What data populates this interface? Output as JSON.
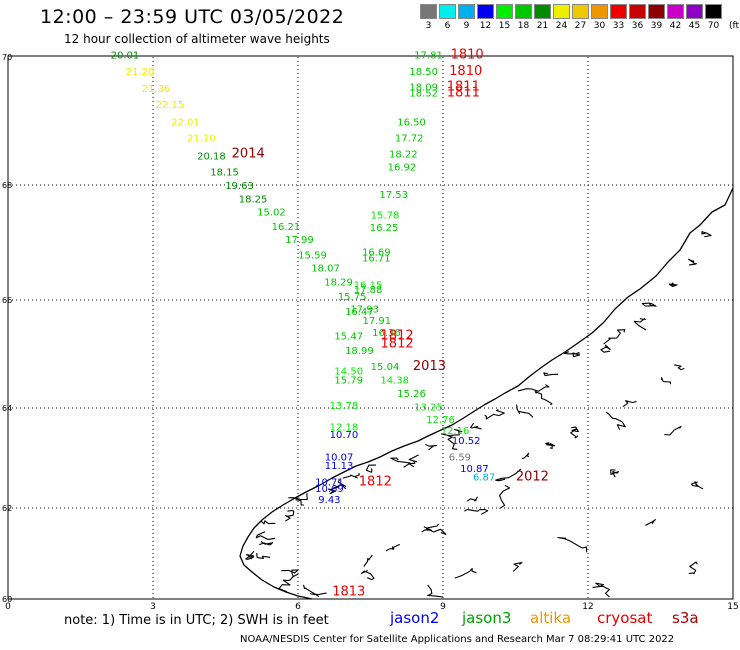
{
  "header": {
    "title": "12:00 – 23:59 UTC 03/05/2022",
    "subtitle": "12 hour collection of altimeter wave heights"
  },
  "legend": {
    "unit": "(ft)",
    "bins": [
      {
        "label": "3",
        "color": "#777777"
      },
      {
        "label": "6",
        "color": "#00eeee"
      },
      {
        "label": "9",
        "color": "#00b0ee"
      },
      {
        "label": "12",
        "color": "#0000ee"
      },
      {
        "label": "15",
        "color": "#00ee00"
      },
      {
        "label": "18",
        "color": "#00c800"
      },
      {
        "label": "21",
        "color": "#008c00"
      },
      {
        "label": "24",
        "color": "#eeee00"
      },
      {
        "label": "27",
        "color": "#eec800"
      },
      {
        "label": "30",
        "color": "#ee9600"
      },
      {
        "label": "33",
        "color": "#ee0000"
      },
      {
        "label": "36",
        "color": "#c80000"
      },
      {
        "label": "39",
        "color": "#8c0000"
      },
      {
        "label": "42",
        "color": "#c800c8"
      },
      {
        "label": "45",
        "color": "#8c00c8"
      },
      {
        "label": "70",
        "color": "#000000"
      }
    ]
  },
  "map": {
    "lat_labels": [
      "70",
      "68",
      "66",
      "64",
      "62",
      "60"
    ],
    "lon_labels": [
      "0",
      "3",
      "6",
      "9",
      "12",
      "15"
    ],
    "obs_colors": {
      "yellow": "#eeee00",
      "dark": "#008c00",
      "mid": "#00c800",
      "light": "#00ee00",
      "blue": "#0000ee",
      "cyan": "#00b0ee",
      "grey": "#777777",
      "red": "#ee0000",
      "maroon": "#8c0000"
    },
    "observations": [
      {
        "text": "20.01",
        "lon": 2.42,
        "lat": 69.98,
        "c": "dark"
      },
      {
        "text": "21.20",
        "lon": 2.73,
        "lat": 69.72,
        "c": "yellow"
      },
      {
        "text": "21.36",
        "lon": 3.06,
        "lat": 69.45,
        "c": "yellow"
      },
      {
        "text": "22.15",
        "lon": 3.35,
        "lat": 69.2,
        "c": "yellow"
      },
      {
        "text": "22.01",
        "lon": 3.67,
        "lat": 68.93,
        "c": "yellow"
      },
      {
        "text": "21.10",
        "lon": 4.0,
        "lat": 68.68,
        "c": "yellow"
      },
      {
        "text": "20.18",
        "lon": 4.21,
        "lat": 68.4,
        "c": "dark"
      },
      {
        "text": "2014",
        "lon": 4.97,
        "lat": 68.43,
        "c": "maroon",
        "big": true
      },
      {
        "text": "18.15",
        "lon": 4.48,
        "lat": 68.15,
        "c": "dark"
      },
      {
        "text": "19.63",
        "lon": 4.79,
        "lat": 67.93,
        "c": "dark"
      },
      {
        "text": "18.25",
        "lon": 5.07,
        "lat": 67.7,
        "c": "dark"
      },
      {
        "text": "15.02",
        "lon": 5.45,
        "lat": 67.47,
        "c": "mid"
      },
      {
        "text": "16.21",
        "lon": 5.75,
        "lat": 67.22,
        "c": "mid"
      },
      {
        "text": "17.99",
        "lon": 6.03,
        "lat": 66.99,
        "c": "mid"
      },
      {
        "text": "15.59",
        "lon": 6.3,
        "lat": 66.72,
        "c": "mid"
      },
      {
        "text": "18.07",
        "lon": 6.57,
        "lat": 66.5,
        "c": "mid"
      },
      {
        "text": "18.29",
        "lon": 6.84,
        "lat": 66.25,
        "c": "mid"
      },
      {
        "text": "15.75",
        "lon": 7.12,
        "lat": 66.0,
        "c": "mid"
      },
      {
        "text": "17.93",
        "lon": 7.38,
        "lat": 65.77,
        "c": "mid"
      },
      {
        "text": "17.91",
        "lon": 7.63,
        "lat": 65.56,
        "c": "mid"
      },
      {
        "text": "16.36",
        "lon": 7.83,
        "lat": 65.33,
        "c": "mid"
      },
      {
        "text": "17.81",
        "lon": 8.7,
        "lat": 69.98,
        "c": "mid"
      },
      {
        "text": "1810",
        "lon": 9.5,
        "lat": 69.98,
        "c": "red",
        "big": true
      },
      {
        "text": "18.50",
        "lon": 8.6,
        "lat": 69.72,
        "c": "mid"
      },
      {
        "text": "1810",
        "lon": 9.47,
        "lat": 69.72,
        "c": "red",
        "big": true
      },
      {
        "text": "18.09",
        "lon": 8.6,
        "lat": 69.48,
        "c": "mid"
      },
      {
        "text": "18.52",
        "lon": 8.6,
        "lat": 69.38,
        "c": "mid"
      },
      {
        "text": "1811",
        "lon": 9.42,
        "lat": 69.48,
        "c": "red",
        "big": true
      },
      {
        "text": "1811",
        "lon": 9.42,
        "lat": 69.38,
        "c": "red",
        "big": true
      },
      {
        "text": "16.50",
        "lon": 8.35,
        "lat": 68.93,
        "c": "mid"
      },
      {
        "text": "17.72",
        "lon": 8.3,
        "lat": 68.68,
        "c": "mid"
      },
      {
        "text": "18.22",
        "lon": 8.18,
        "lat": 68.43,
        "c": "mid"
      },
      {
        "text": "16.92",
        "lon": 8.15,
        "lat": 68.23,
        "c": "mid"
      },
      {
        "text": "17.53",
        "lon": 7.98,
        "lat": 67.77,
        "c": "mid"
      },
      {
        "text": "15.78",
        "lon": 7.8,
        "lat": 67.42,
        "c": "light"
      },
      {
        "text": "16.25",
        "lon": 7.78,
        "lat": 67.2,
        "c": "mid"
      },
      {
        "text": "16.69",
        "lon": 7.62,
        "lat": 66.77,
        "c": "mid"
      },
      {
        "text": "16.71",
        "lon": 7.62,
        "lat": 66.67,
        "c": "mid"
      },
      {
        "text": "16.15",
        "lon": 7.45,
        "lat": 66.2,
        "c": "light"
      },
      {
        "text": "17.88",
        "lon": 7.45,
        "lat": 66.12,
        "c": "mid"
      },
      {
        "text": "16.47",
        "lon": 7.27,
        "lat": 65.72,
        "c": "mid"
      },
      {
        "text": "15.47",
        "lon": 7.05,
        "lat": 65.27,
        "c": "mid"
      },
      {
        "text": "1812",
        "lon": 8.05,
        "lat": 65.27,
        "c": "red",
        "big": true
      },
      {
        "text": "1812",
        "lon": 8.05,
        "lat": 65.12,
        "c": "red",
        "big": true
      },
      {
        "text": "18.99",
        "lon": 7.27,
        "lat": 65.0,
        "c": "mid"
      },
      {
        "text": "14.50",
        "lon": 7.05,
        "lat": 64.62,
        "c": "light"
      },
      {
        "text": "15.04",
        "lon": 7.8,
        "lat": 64.7,
        "c": "mid"
      },
      {
        "text": "2013",
        "lon": 8.72,
        "lat": 64.7,
        "c": "maroon",
        "big": true
      },
      {
        "text": "15.79",
        "lon": 7.05,
        "lat": 64.45,
        "c": "mid"
      },
      {
        "text": "14.38",
        "lon": 8.0,
        "lat": 64.45,
        "c": "light"
      },
      {
        "text": "15.26",
        "lon": 8.35,
        "lat": 64.2,
        "c": "mid"
      },
      {
        "text": "13.78",
        "lon": 6.95,
        "lat": 63.98,
        "c": "light"
      },
      {
        "text": "13.25",
        "lon": 8.7,
        "lat": 63.95,
        "c": "light"
      },
      {
        "text": "12.76",
        "lon": 8.95,
        "lat": 63.7,
        "c": "light"
      },
      {
        "text": "12.18",
        "lon": 6.95,
        "lat": 63.55,
        "c": "light"
      },
      {
        "text": "12.16",
        "lon": 9.25,
        "lat": 63.48,
        "c": "light"
      },
      {
        "text": "10.70",
        "lon": 6.95,
        "lat": 63.4,
        "c": "blue"
      },
      {
        "text": "10.52",
        "lon": 9.48,
        "lat": 63.28,
        "c": "blue"
      },
      {
        "text": "10.07",
        "lon": 6.85,
        "lat": 62.95,
        "c": "blue"
      },
      {
        "text": "6.59",
        "lon": 9.35,
        "lat": 62.95,
        "c": "grey"
      },
      {
        "text": "11.13",
        "lon": 6.85,
        "lat": 62.78,
        "c": "blue"
      },
      {
        "text": "10.87",
        "lon": 9.65,
        "lat": 62.72,
        "c": "blue"
      },
      {
        "text": "6.87",
        "lon": 9.85,
        "lat": 62.55,
        "c": "cyan"
      },
      {
        "text": "2012",
        "lon": 10.85,
        "lat": 62.55,
        "c": "maroon",
        "big": true
      },
      {
        "text": "10.71",
        "lon": 6.65,
        "lat": 62.45,
        "c": "blue"
      },
      {
        "text": "1812",
        "lon": 7.6,
        "lat": 62.45,
        "c": "red",
        "big": true
      },
      {
        "text": "10.69",
        "lon": 6.65,
        "lat": 62.32,
        "c": "blue"
      },
      {
        "text": "9.43",
        "lon": 6.65,
        "lat": 62.1,
        "c": "blue"
      },
      {
        "text": "1813",
        "lon": 7.05,
        "lat": 60.08,
        "c": "red",
        "big": true
      }
    ]
  },
  "footer": {
    "note": "note: 1) Time is in UTC; 2) SWH is in feet",
    "missions": [
      {
        "name": "jason2",
        "color": "#0000ee"
      },
      {
        "name": "jason3",
        "color": "#00a000"
      },
      {
        "name": "altika",
        "color": "#ee9600"
      },
      {
        "name": "cryosat",
        "color": "#ee0000"
      },
      {
        "name": "s3a",
        "color": "#b00000"
      }
    ],
    "credit": "NOAA/NESDIS Center for Satellite Applications and Research    Mar  7 08:29:41 UTC 2022"
  }
}
